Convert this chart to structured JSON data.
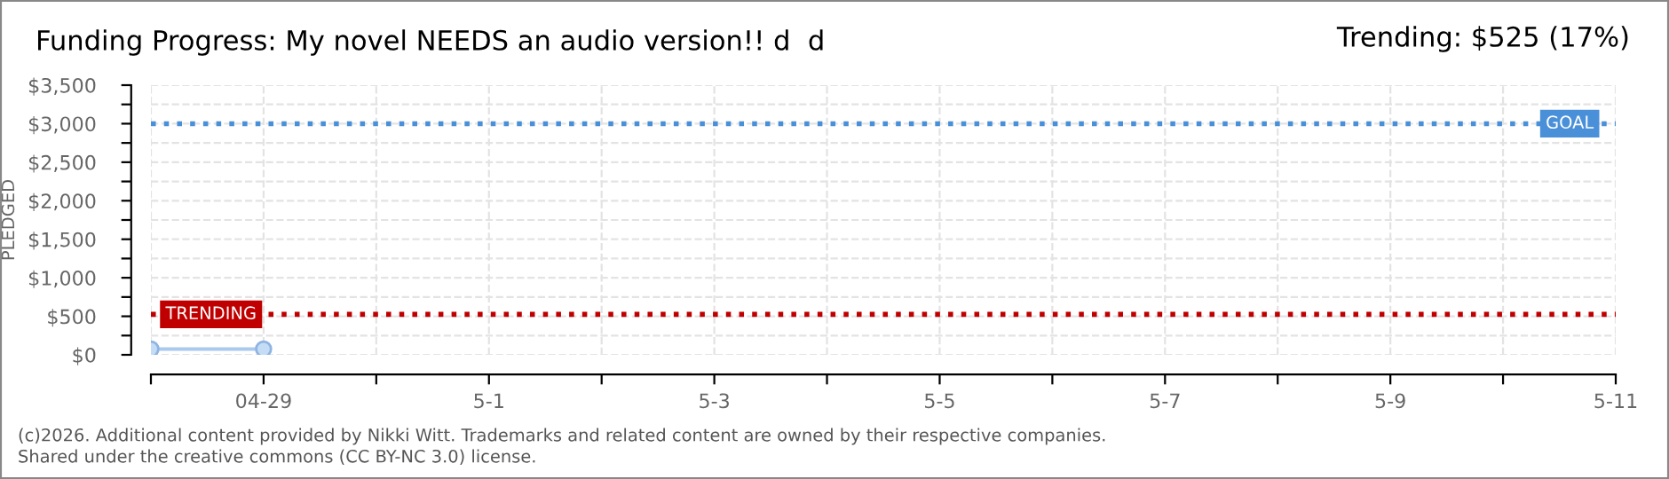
{
  "chart_data": {
    "type": "line",
    "title": "Funding Progress: My novel NEEDS an audio version!! d  d",
    "subtitle": "Trending: $525 (17%)",
    "ylabel": "PLEDGED",
    "x": [
      "2026-04-28",
      "2026-04-29"
    ],
    "series": [
      {
        "color": "#a9c9ef",
        "values": [
          75,
          75
        ]
      }
    ],
    "marker": "circle",
    "line_style": "solid",
    "xlim": [
      "2026-04-28",
      "2026-05-11"
    ],
    "xticks": [
      {
        "value": "2026-04-28",
        "label": null
      },
      {
        "value": "2026-04-29",
        "label": "04-29"
      },
      {
        "value": "2026-04-30",
        "label": null
      },
      {
        "value": "2026-05-01",
        "label": "5-1"
      },
      {
        "value": "2026-05-02",
        "label": null
      },
      {
        "value": "2026-05-03",
        "label": "5-3"
      },
      {
        "value": "2026-05-04",
        "label": null
      },
      {
        "value": "2026-05-05",
        "label": "5-5"
      },
      {
        "value": "2026-05-06",
        "label": null
      },
      {
        "value": "2026-05-07",
        "label": "5-7"
      },
      {
        "value": "2026-05-08",
        "label": null
      },
      {
        "value": "2026-05-09",
        "label": "5-9"
      },
      {
        "value": "2026-05-10",
        "label": null
      },
      {
        "value": "2026-05-11",
        "label": "5-11"
      }
    ],
    "ylim": [
      0,
      3500
    ],
    "yticks": [
      {
        "value": 0,
        "label": "$0"
      },
      {
        "value": 250,
        "label": null
      },
      {
        "value": 500,
        "label": "$500"
      },
      {
        "value": 750,
        "label": null
      },
      {
        "value": 1000,
        "label": "$1,000"
      },
      {
        "value": 1250,
        "label": null
      },
      {
        "value": 1500,
        "label": "$1,500"
      },
      {
        "value": 1750,
        "label": null
      },
      {
        "value": 2000,
        "label": "$2,000"
      },
      {
        "value": 2250,
        "label": null
      },
      {
        "value": 2500,
        "label": "$2,500"
      },
      {
        "value": 2750,
        "label": null
      },
      {
        "value": 3000,
        "label": "$3,000"
      },
      {
        "value": 3250,
        "label": null
      },
      {
        "value": 3500,
        "label": "$3,500"
      }
    ],
    "grid": true,
    "ref_lines": [
      {
        "axis": "y",
        "value": 3000,
        "label": "GOAL",
        "color": "#4a90d9",
        "line_style": "dotted"
      },
      {
        "axis": "y",
        "value": 525,
        "label": "TRENDING",
        "color": "#c00000",
        "line_style": "dotted"
      }
    ],
    "annotations": [
      "(c)2026. Additional content provided by Nikki Witt. Trademarks and related content are owned by their respective companies.",
      "Shared under the creative commons (CC BY-NC 3.0) license."
    ]
  }
}
